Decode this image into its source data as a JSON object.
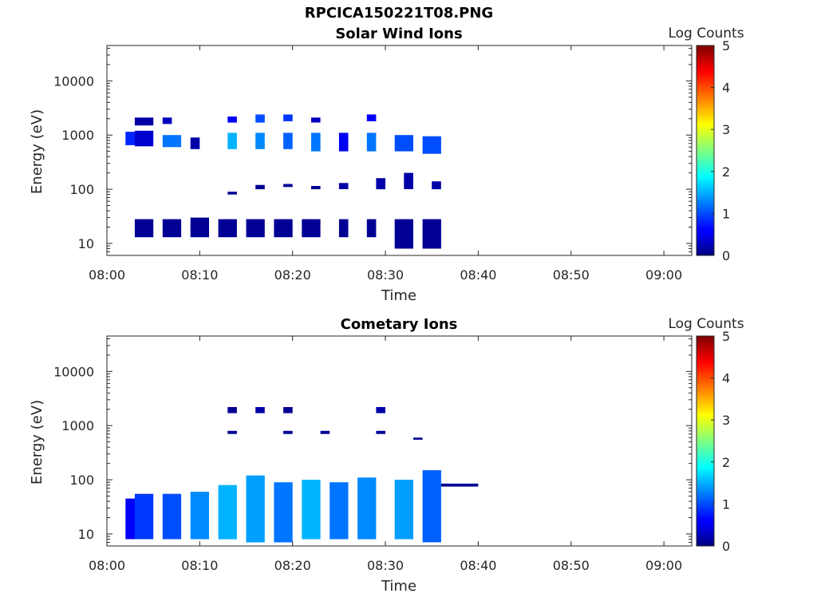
{
  "figure": {
    "title": "RPCICA150221T08.PNG"
  },
  "chart_data": [
    {
      "type": "heatmap",
      "title": "Solar Wind Ions",
      "xlabel": "Time",
      "ylabel": "Energy (eV)",
      "yscale": "log",
      "xlim": [
        "08:00",
        "09:03"
      ],
      "ylim": [
        6,
        45000
      ],
      "xticks": [
        "08:00",
        "08:10",
        "08:20",
        "08:30",
        "08:40",
        "08:50",
        "09:00"
      ],
      "yticks": [
        "10",
        "100",
        "1000",
        "10000"
      ],
      "colorbar": {
        "label": "Log Counts",
        "ticks": [
          "0",
          "1",
          "2",
          "3",
          "4",
          "5"
        ],
        "range": [
          0,
          5
        ],
        "colormap": "jet"
      },
      "grid": false,
      "cells": [
        {
          "t0": "08:02",
          "t1": "08:04",
          "e0": 650,
          "e1": 1150,
          "v": 0.8
        },
        {
          "t0": "08:03",
          "t1": "08:05",
          "e0": 620,
          "e1": 1200,
          "v": 0.4
        },
        {
          "t0": "08:03",
          "t1": "08:05",
          "e0": 1500,
          "e1": 2100,
          "v": 0.2
        },
        {
          "t0": "08:06",
          "t1": "08:08",
          "e0": 600,
          "e1": 1000,
          "v": 1.2
        },
        {
          "t0": "08:06",
          "t1": "08:07",
          "e0": 1600,
          "e1": 2100,
          "v": 0.3
        },
        {
          "t0": "08:09",
          "t1": "08:10",
          "e0": 550,
          "e1": 900,
          "v": 0.2
        },
        {
          "t0": "08:13",
          "t1": "08:14",
          "e0": 550,
          "e1": 1100,
          "v": 1.5
        },
        {
          "t0": "08:13",
          "t1": "08:14",
          "e0": 1700,
          "e1": 2200,
          "v": 0.6
        },
        {
          "t0": "08:16",
          "t1": "08:17",
          "e0": 550,
          "e1": 1100,
          "v": 1.3
        },
        {
          "t0": "08:16",
          "t1": "08:17",
          "e0": 1700,
          "e1": 2400,
          "v": 1.0
        },
        {
          "t0": "08:19",
          "t1": "08:20",
          "e0": 550,
          "e1": 1100,
          "v": 1.1
        },
        {
          "t0": "08:19",
          "t1": "08:20",
          "e0": 1800,
          "e1": 2400,
          "v": 0.9
        },
        {
          "t0": "08:22",
          "t1": "08:23",
          "e0": 500,
          "e1": 1100,
          "v": 1.2
        },
        {
          "t0": "08:22",
          "t1": "08:23",
          "e0": 1700,
          "e1": 2100,
          "v": 0.3
        },
        {
          "t0": "08:25",
          "t1": "08:26",
          "e0": 500,
          "e1": 1100,
          "v": 0.6
        },
        {
          "t0": "08:28",
          "t1": "08:29",
          "e0": 500,
          "e1": 1100,
          "v": 1.2
        },
        {
          "t0": "08:28",
          "t1": "08:29",
          "e0": 1800,
          "e1": 2400,
          "v": 0.6
        },
        {
          "t0": "08:31",
          "t1": "08:33",
          "e0": 500,
          "e1": 1000,
          "v": 1.0
        },
        {
          "t0": "08:34",
          "t1": "08:36",
          "e0": 450,
          "e1": 950,
          "v": 1.0
        },
        {
          "t0": "08:03",
          "t1": "08:05",
          "e0": 13,
          "e1": 28,
          "v": 0.1
        },
        {
          "t0": "08:06",
          "t1": "08:08",
          "e0": 13,
          "e1": 28,
          "v": 0.1
        },
        {
          "t0": "08:09",
          "t1": "08:11",
          "e0": 13,
          "e1": 30,
          "v": 0.1
        },
        {
          "t0": "08:12",
          "t1": "08:14",
          "e0": 13,
          "e1": 28,
          "v": 0.1
        },
        {
          "t0": "08:15",
          "t1": "08:17",
          "e0": 13,
          "e1": 28,
          "v": 0.1
        },
        {
          "t0": "08:18",
          "t1": "08:20",
          "e0": 13,
          "e1": 28,
          "v": 0.1
        },
        {
          "t0": "08:21",
          "t1": "08:23",
          "e0": 13,
          "e1": 28,
          "v": 0.1
        },
        {
          "t0": "08:25",
          "t1": "08:26",
          "e0": 13,
          "e1": 28,
          "v": 0.1
        },
        {
          "t0": "08:28",
          "t1": "08:29",
          "e0": 13,
          "e1": 28,
          "v": 0.1
        },
        {
          "t0": "08:31",
          "t1": "08:33",
          "e0": 8,
          "e1": 28,
          "v": 0.1
        },
        {
          "t0": "08:34",
          "t1": "08:36",
          "e0": 8,
          "e1": 28,
          "v": 0.1
        },
        {
          "t0": "08:13",
          "t1": "08:14",
          "e0": 80,
          "e1": 90,
          "v": 0.1
        },
        {
          "t0": "08:16",
          "t1": "08:17",
          "e0": 100,
          "e1": 120,
          "v": 0.1
        },
        {
          "t0": "08:19",
          "t1": "08:20",
          "e0": 110,
          "e1": 125,
          "v": 0.1
        },
        {
          "t0": "08:22",
          "t1": "08:23",
          "e0": 100,
          "e1": 115,
          "v": 0.1
        },
        {
          "t0": "08:25",
          "t1": "08:26",
          "e0": 100,
          "e1": 130,
          "v": 0.2
        },
        {
          "t0": "08:29",
          "t1": "08:30",
          "e0": 100,
          "e1": 160,
          "v": 0.2
        },
        {
          "t0": "08:32",
          "t1": "08:33",
          "e0": 100,
          "e1": 200,
          "v": 0.2
        },
        {
          "t0": "08:35",
          "t1": "08:36",
          "e0": 100,
          "e1": 140,
          "v": 0.2
        }
      ]
    },
    {
      "type": "heatmap",
      "title": "Cometary Ions",
      "xlabel": "Time",
      "ylabel": "Energy (eV)",
      "yscale": "log",
      "xlim": [
        "08:00",
        "09:03"
      ],
      "ylim": [
        6,
        45000
      ],
      "xticks": [
        "08:00",
        "08:10",
        "08:20",
        "08:30",
        "08:40",
        "08:50",
        "09:00"
      ],
      "yticks": [
        "10",
        "100",
        "1000",
        "10000"
      ],
      "colorbar": {
        "label": "Log Counts",
        "ticks": [
          "0",
          "1",
          "2",
          "3",
          "4",
          "5"
        ],
        "range": [
          0,
          5
        ],
        "colormap": "jet"
      },
      "grid": false,
      "cells": [
        {
          "t0": "08:02",
          "t1": "08:04",
          "e0": 8,
          "e1": 45,
          "v": 0.6
        },
        {
          "t0": "08:03",
          "t1": "08:05",
          "e0": 8,
          "e1": 55,
          "v": 0.9
        },
        {
          "t0": "08:06",
          "t1": "08:08",
          "e0": 8,
          "e1": 55,
          "v": 1.0
        },
        {
          "t0": "08:09",
          "t1": "08:11",
          "e0": 8,
          "e1": 60,
          "v": 1.3
        },
        {
          "t0": "08:12",
          "t1": "08:14",
          "e0": 8,
          "e1": 80,
          "v": 1.5
        },
        {
          "t0": "08:15",
          "t1": "08:17",
          "e0": 7,
          "e1": 120,
          "v": 1.4
        },
        {
          "t0": "08:18",
          "t1": "08:20",
          "e0": 7,
          "e1": 90,
          "v": 1.2
        },
        {
          "t0": "08:21",
          "t1": "08:23",
          "e0": 8,
          "e1": 100,
          "v": 1.5
        },
        {
          "t0": "08:24",
          "t1": "08:26",
          "e0": 8,
          "e1": 90,
          "v": 1.2
        },
        {
          "t0": "08:27",
          "t1": "08:29",
          "e0": 8,
          "e1": 110,
          "v": 1.3
        },
        {
          "t0": "08:31",
          "t1": "08:33",
          "e0": 8,
          "e1": 100,
          "v": 1.4
        },
        {
          "t0": "08:34",
          "t1": "08:36",
          "e0": 7,
          "e1": 150,
          "v": 1.1
        },
        {
          "t0": "08:36",
          "t1": "08:40",
          "e0": 75,
          "e1": 85,
          "v": 0.1
        },
        {
          "t0": "08:13",
          "t1": "08:14",
          "e0": 1700,
          "e1": 2200,
          "v": 0.1
        },
        {
          "t0": "08:16",
          "t1": "08:17",
          "e0": 1700,
          "e1": 2200,
          "v": 0.2
        },
        {
          "t0": "08:19",
          "t1": "08:20",
          "e0": 1700,
          "e1": 2200,
          "v": 0.1
        },
        {
          "t0": "08:29",
          "t1": "08:30",
          "e0": 1700,
          "e1": 2200,
          "v": 0.2
        },
        {
          "t0": "08:13",
          "t1": "08:14",
          "e0": 700,
          "e1": 800,
          "v": 0.1
        },
        {
          "t0": "08:19",
          "t1": "08:20",
          "e0": 700,
          "e1": 800,
          "v": 0.1
        },
        {
          "t0": "08:23",
          "t1": "08:24",
          "e0": 700,
          "e1": 800,
          "v": 0.1
        },
        {
          "t0": "08:29",
          "t1": "08:30",
          "e0": 700,
          "e1": 800,
          "v": 0.1
        },
        {
          "t0": "08:33",
          "t1": "08:34",
          "e0": 550,
          "e1": 600,
          "v": 0.1
        }
      ]
    }
  ]
}
